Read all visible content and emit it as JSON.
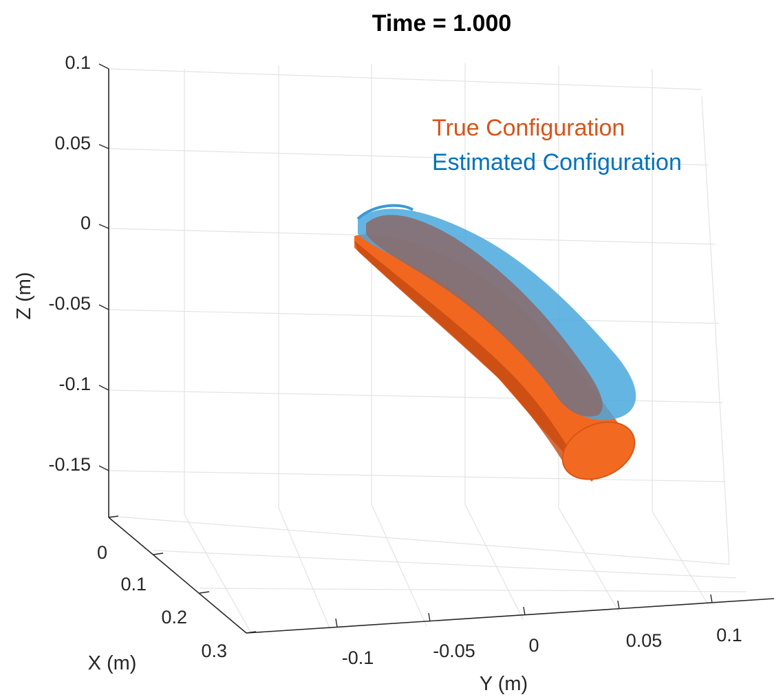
{
  "chart_data": {
    "type": "3d-surface",
    "title": "Time = 1.000",
    "xlabel": "X (m)",
    "ylabel": "Y (m)",
    "zlabel": "Z (m)",
    "x_ticks": [
      "0",
      "0.1",
      "0.2",
      "0.3"
    ],
    "y_ticks": [
      "-0.1",
      "-0.05",
      "0",
      "0.05",
      "0.1"
    ],
    "z_ticks": [
      "0.1",
      "0.05",
      "0",
      "-0.05",
      "-0.1",
      "-0.15"
    ],
    "xlim": [
      0,
      0.3
    ],
    "ylim": [
      -0.125,
      0.125
    ],
    "zlim": [
      -0.2,
      0.1
    ],
    "grid": true,
    "series": [
      {
        "name": "True Configuration",
        "color": "#D95319",
        "surface": "tube-orange"
      },
      {
        "name": "Estimated Configuration",
        "color": "#0072BD",
        "surface": "tube-blue"
      }
    ]
  }
}
